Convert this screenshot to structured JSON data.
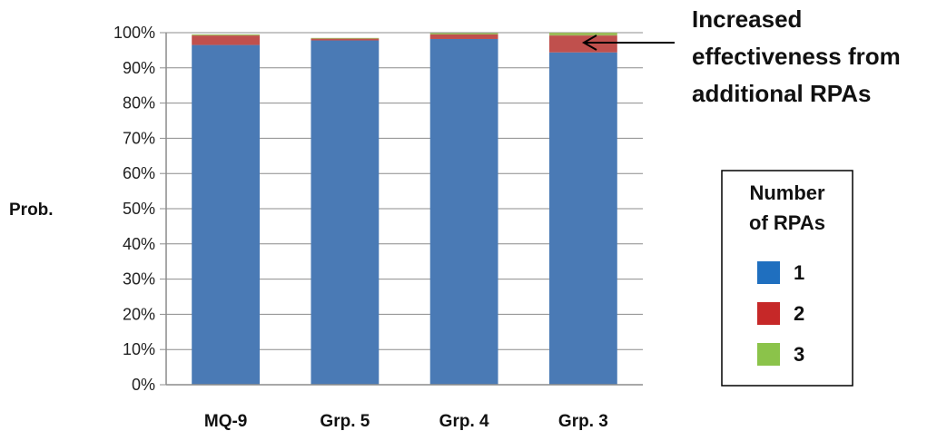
{
  "chart_data": {
    "type": "bar",
    "stacked": true,
    "categories": [
      "MQ-9",
      "Grp. 5",
      "Grp. 4",
      "Grp. 3"
    ],
    "series": [
      {
        "name": "1",
        "values": [
          96.5,
          97.8,
          98.2,
          94.4
        ],
        "color": "#4a7ab5"
      },
      {
        "name": "2",
        "values": [
          2.7,
          0.5,
          1.3,
          4.8
        ],
        "color": "#c0504d"
      },
      {
        "name": "3",
        "values": [
          0.3,
          0.2,
          0.4,
          0.8
        ],
        "color": "#9bbb59"
      }
    ],
    "yticks": [
      "0%",
      "10%",
      "20%",
      "30%",
      "40%",
      "50%",
      "60%",
      "70%",
      "80%",
      "90%",
      "100%"
    ],
    "ylim": [
      0,
      100
    ],
    "ylabel": "Prob.",
    "xlabel": "",
    "grid": true,
    "annotation": {
      "lines": [
        "Increased",
        "effectiveness from",
        "additional RPAs"
      ],
      "target_category": "Grp. 3"
    },
    "legend": {
      "title_lines": [
        "Number",
        "of RPAs"
      ],
      "placement": "right",
      "swatch_colors": [
        "#1f6fbf",
        "#c62828",
        "#8bc34a"
      ]
    }
  }
}
